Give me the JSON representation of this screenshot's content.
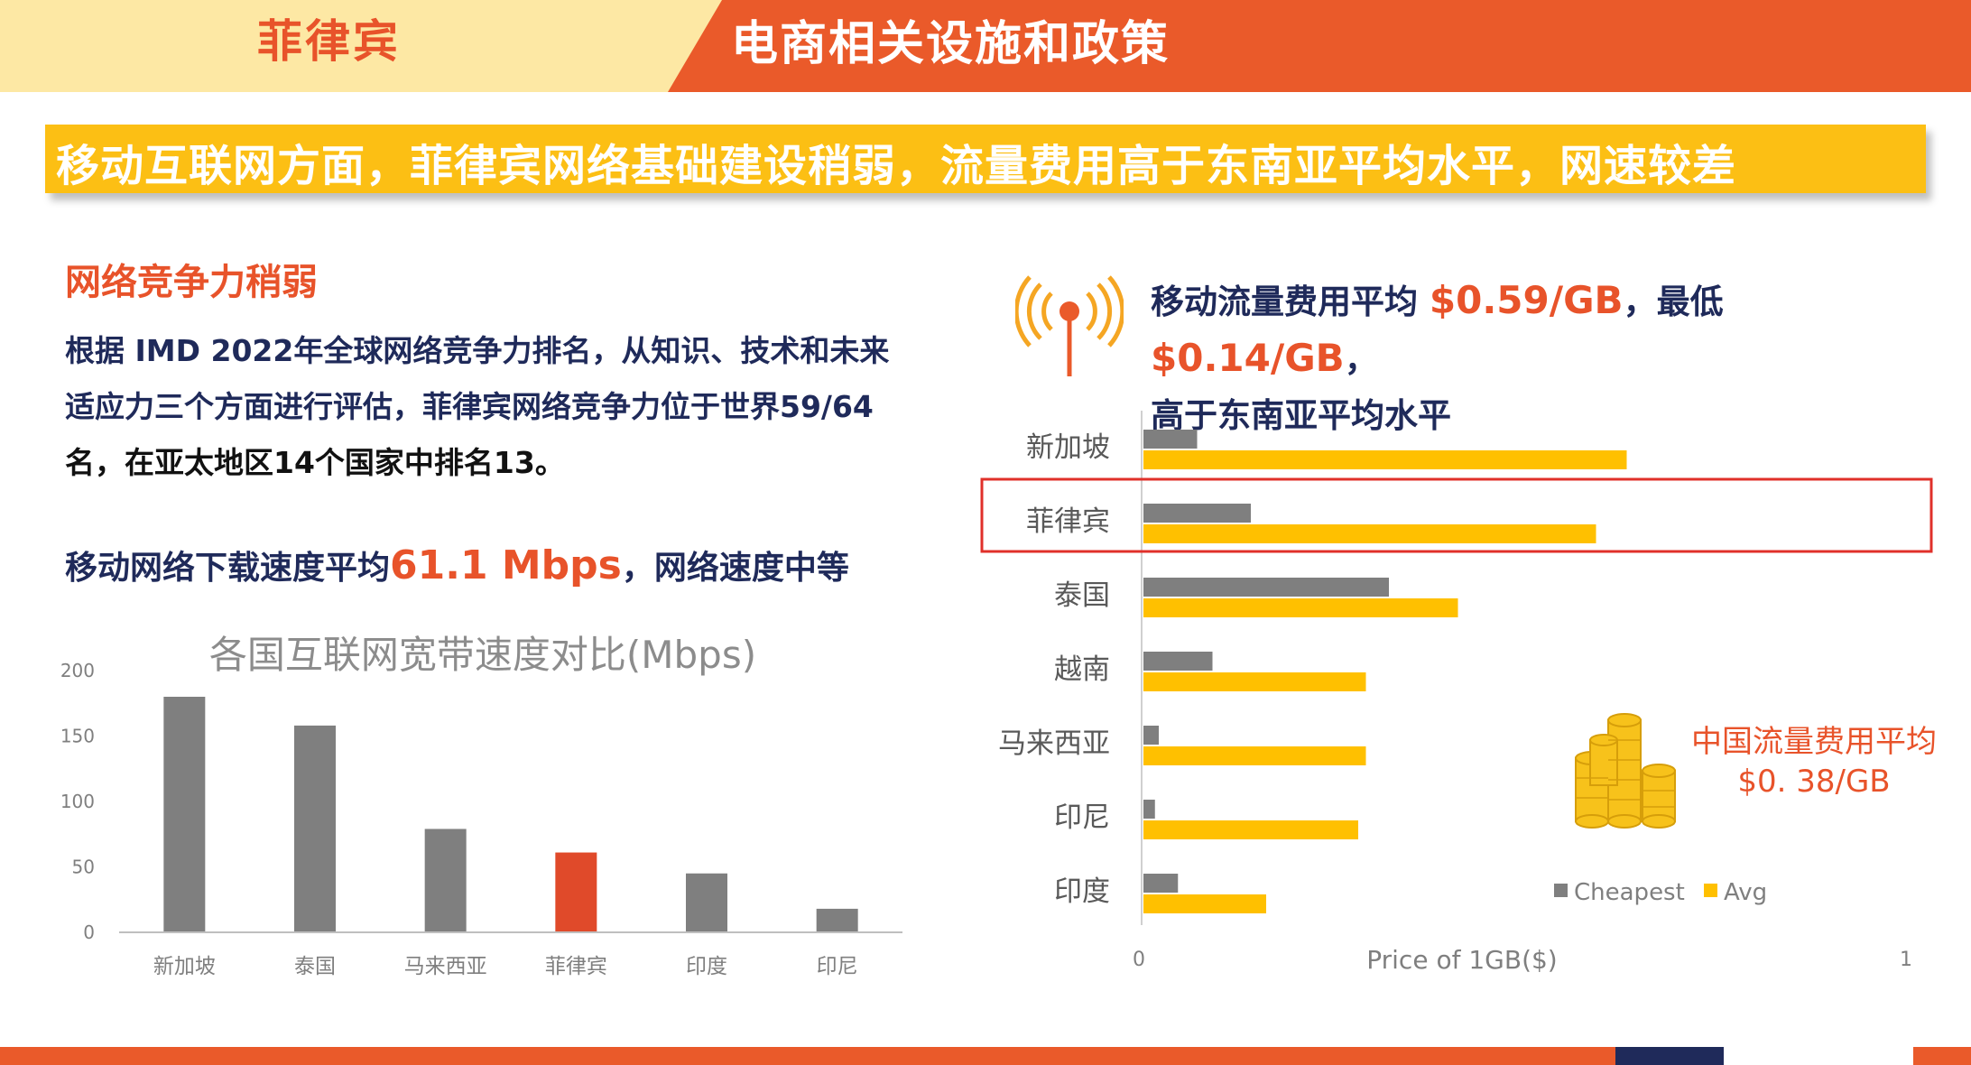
{
  "header": {
    "left_title": "菲律宾",
    "right_title": "电商相关设施和政策"
  },
  "banner": {
    "text": "移动互联网方面，菲律宾网络基础建设稍弱，流量费用高于东南亚平均水平，网速较差"
  },
  "left": {
    "section_title": "网络竞争力稍弱",
    "paragraph_line1": "根据 IMD 2022年全球网络竞争力排名，从知识、技术和未来",
    "paragraph_line2": "适应力三个方面进行评估，菲律宾网络竞争力位于世界59/64",
    "paragraph_line3": "名，在亚太地区14个国家中排名13。",
    "speed_prefix": "移动网络下载速度平均",
    "speed_value": "61.1 Mbps",
    "speed_suffix": "，网络速度中等"
  },
  "right": {
    "head_prefix": "移动流量费用平均 ",
    "avg_price": "$0.59/GB",
    "head_mid": "，最低 ",
    "min_price": "$0.14/GB",
    "head_suffix": "，",
    "head_line2": "高于东南亚平均水平",
    "cn_price_label": "中国流量费用平均",
    "cn_price_value": "$0. 38/GB",
    "signal_icon": "signal-tower-icon",
    "coins_icon": "gold-coins-icon"
  },
  "colors": {
    "accent_orange": "#ea5a2a",
    "banner_yellow": "#fcbf14",
    "navy": "#1f2a5a",
    "bar_gray": "#7f7f7f",
    "bar_yellow": "#ffc000",
    "highlight_red": "#e04a2a"
  },
  "chart_data": [
    {
      "type": "bar",
      "title": "各国互联网宽带速度对比(Mbps)",
      "categories": [
        "新加坡",
        "泰国",
        "马来西亚",
        "菲律宾",
        "印度",
        "印尼"
      ],
      "values": [
        180,
        158,
        79,
        61,
        45,
        18
      ],
      "highlight_category": "菲律宾",
      "ylim": [
        0,
        200
      ],
      "yticks": [
        0,
        50,
        100,
        150,
        200
      ],
      "grid": false
    },
    {
      "type": "bar",
      "orientation": "horizontal",
      "categories": [
        "新加坡",
        "菲律宾",
        "泰国",
        "越南",
        "马来西亚",
        "印尼",
        "印度"
      ],
      "series": [
        {
          "name": "Cheapest",
          "values": [
            0.07,
            0.14,
            0.32,
            0.09,
            0.02,
            0.015,
            0.045
          ]
        },
        {
          "name": "Avg",
          "values": [
            0.63,
            0.59,
            0.41,
            0.29,
            0.29,
            0.28,
            0.16
          ]
        }
      ],
      "highlight_category": "菲律宾",
      "xlabel": "Price of 1GB($)",
      "xlim": [
        0,
        1
      ],
      "xticks": [
        "0",
        "1"
      ],
      "legend": "bottom-right",
      "grid": false
    }
  ]
}
